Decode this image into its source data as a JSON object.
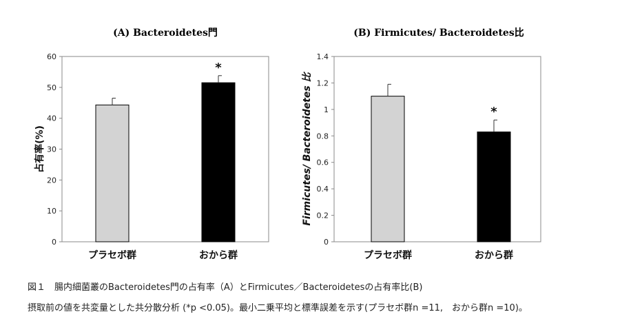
{
  "chart_data": [
    {
      "type": "bar",
      "title": "(A) Bacteroidetes門",
      "ylabel": "占有率(%)",
      "categories": [
        "プラセボ群",
        "おから群"
      ],
      "values": [
        44.3,
        51.5
      ],
      "errors": [
        2.2,
        2.3
      ],
      "significance": [
        "",
        "*"
      ],
      "colors": [
        "#d3d3d3",
        "#000000"
      ],
      "ylim": [
        0,
        60
      ],
      "yticks": [
        "0",
        "10",
        "20",
        "30",
        "40",
        "50",
        "60"
      ],
      "grid": false
    },
    {
      "type": "bar",
      "title": "(B) Firmicutes/ Bacteroidetes比",
      "ylabel": "Firmicutes/ Bacteroidetes 比",
      "categories": [
        "プラセボ群",
        "おから群"
      ],
      "values": [
        1.1,
        0.83
      ],
      "errors": [
        0.09,
        0.09
      ],
      "significance": [
        "",
        "*"
      ],
      "colors": [
        "#d3d3d3",
        "#000000"
      ],
      "ylim": [
        0,
        1.4
      ],
      "yticks": [
        "0",
        "0.2",
        "0.4",
        "0.6",
        "0.8",
        "1",
        "1.2",
        "1.4"
      ],
      "grid": false
    }
  ],
  "caption": {
    "line1": "図１　腸内細菌叢のBacteroidetes門の占有率（A）とFirmicutes／Bacteroidetesの占有率比(B)",
    "line2": "摂取前の値を共変量とした共分散分析 (*p <0.05)。最小二乗平均と標準誤差を示す(プラセボ群n =11,　おから群n =10)。"
  }
}
